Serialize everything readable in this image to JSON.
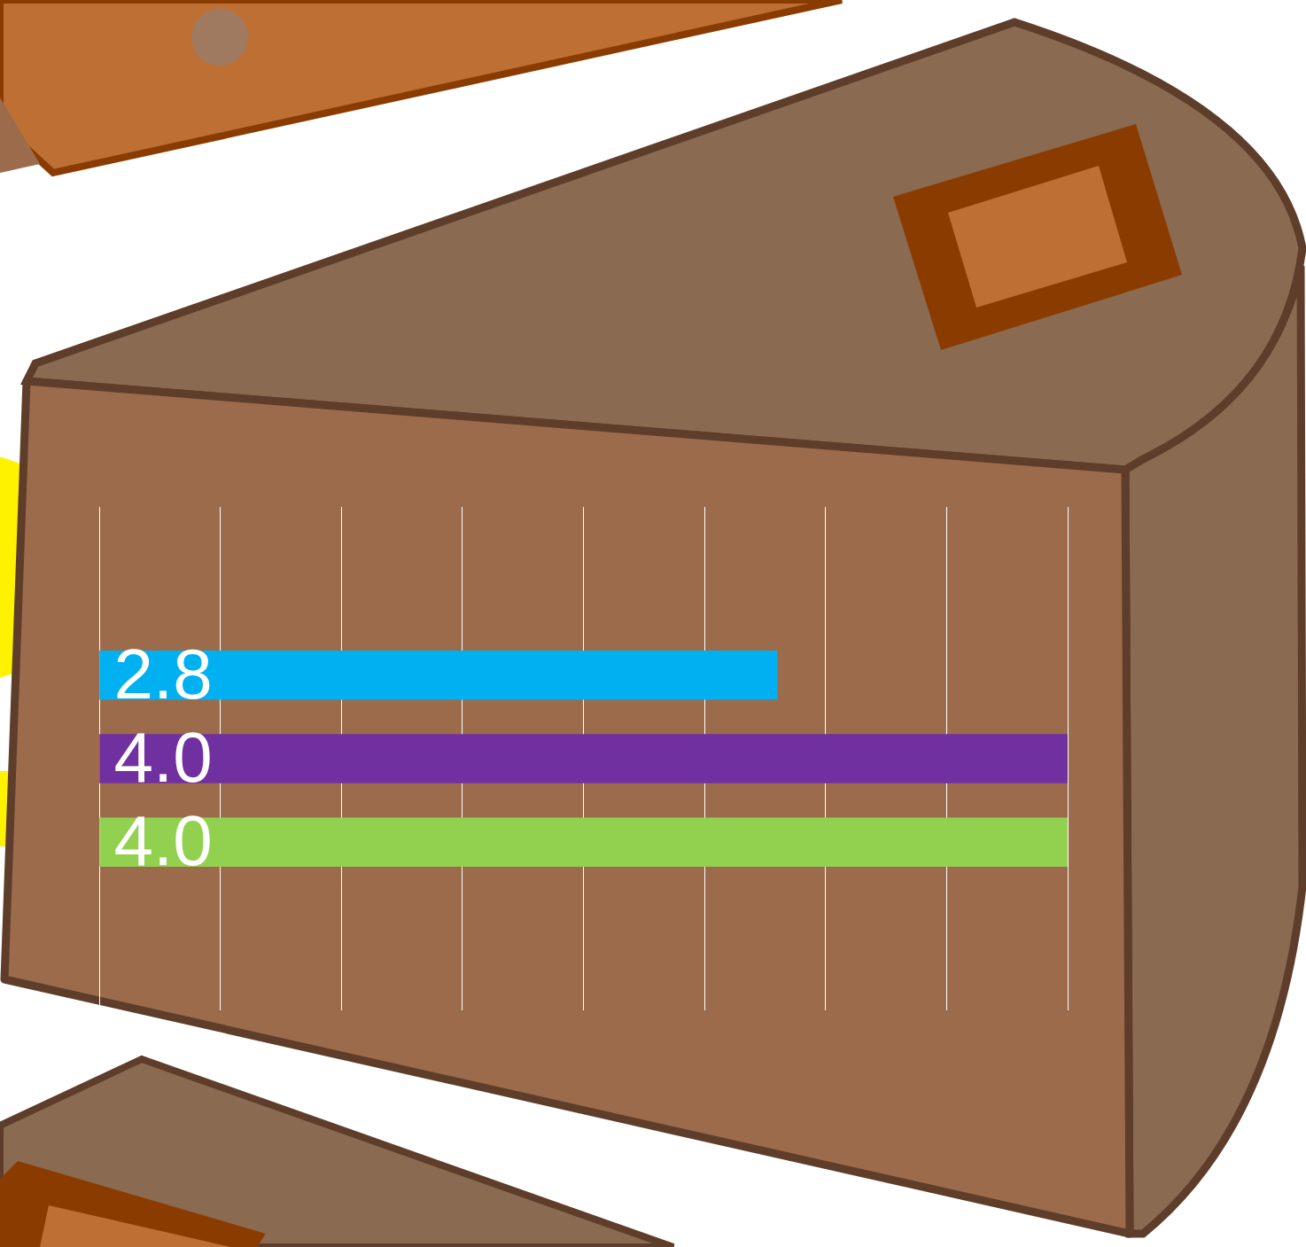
{
  "chart_data": {
    "type": "bar",
    "orientation": "horizontal",
    "categories": [
      null,
      null,
      null
    ],
    "values": [
      2.8,
      4.0,
      4.0
    ],
    "value_labels": [
      "2.8",
      "4.0",
      "4.0"
    ],
    "colors": [
      "#00b0f0",
      "#7030a0",
      "#92d050"
    ],
    "xlim": [
      0,
      4.0
    ],
    "xticks": [
      0,
      0.5,
      1,
      1.5,
      2,
      2.5,
      3,
      3.5,
      4
    ],
    "grid": true,
    "data_labels": true,
    "tick_labels": false
  }
}
